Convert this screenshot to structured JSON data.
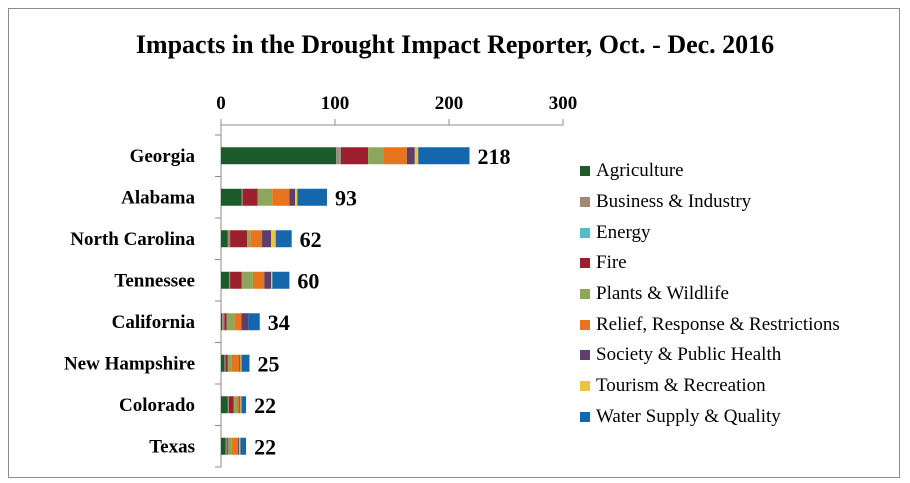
{
  "chart_data": {
    "type": "bar",
    "orientation": "horizontal",
    "stacked": true,
    "title": "Impacts in the Drought Impact Reporter, Oct. - Dec. 2016",
    "xlabel": "",
    "ylabel": "",
    "xlim": [
      0,
      300
    ],
    "xticks": [
      0,
      100,
      200,
      300
    ],
    "x_axis_position": "top",
    "grid": false,
    "legend_position": "right",
    "categories": [
      "Georgia",
      "Alabama",
      "North Carolina",
      "Tennessee",
      "California",
      "New Hampshire",
      "Colorado",
      "Texas"
    ],
    "totals": [
      218,
      93,
      62,
      60,
      34,
      25,
      22,
      22
    ],
    "series": [
      {
        "name": "Agriculture",
        "color": "#1d5c2a",
        "values": [
          101,
          18,
          6,
          7,
          1,
          3,
          6,
          4
        ]
      },
      {
        "name": "Business & Industry",
        "color": "#a08a76",
        "values": [
          3,
          1,
          2,
          1,
          2,
          1,
          1,
          1
        ]
      },
      {
        "name": "Energy",
        "color": "#5cb8c5",
        "values": [
          1,
          0,
          0,
          0,
          0,
          0,
          0,
          0
        ]
      },
      {
        "name": "Fire",
        "color": "#9b1f2c",
        "values": [
          24,
          13,
          15,
          10,
          2,
          2,
          4,
          1
        ]
      },
      {
        "name": "Plants & Wildlife",
        "color": "#8da65c",
        "values": [
          14,
          13,
          3,
          10,
          7,
          3,
          3,
          3
        ]
      },
      {
        "name": "Relief, Response & Restrictions",
        "color": "#e8741c",
        "values": [
          20,
          15,
          10,
          10,
          6,
          7,
          2,
          6
        ]
      },
      {
        "name": "Society & Public Health",
        "color": "#5e3f6b",
        "values": [
          7,
          5,
          8,
          6,
          6,
          1,
          1,
          1
        ]
      },
      {
        "name": "Tourism & Recreation",
        "color": "#ecc63a",
        "values": [
          3,
          2,
          4,
          1,
          0,
          1,
          1,
          1
        ]
      },
      {
        "name": "Water Supply & Quality",
        "color": "#1467ad",
        "values": [
          45,
          26,
          14,
          15,
          10,
          7,
          4,
          5
        ]
      }
    ]
  }
}
